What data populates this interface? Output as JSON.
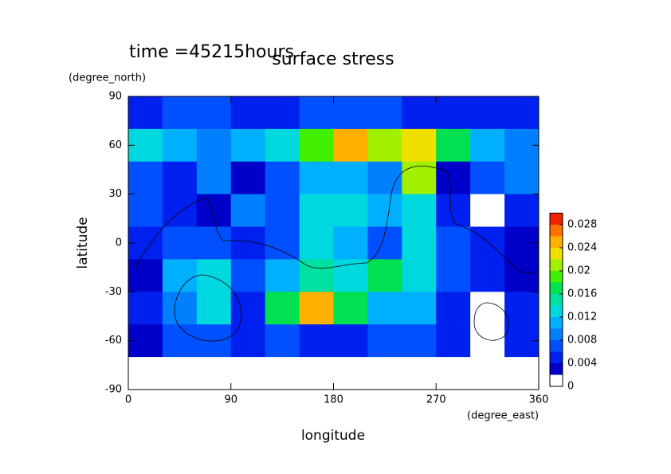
{
  "chart_data": {
    "type": "contour",
    "time_label": "time =45215hours",
    "title": "surface stress",
    "ylabel_unit": "(degree_north)",
    "ylabel": "latitude",
    "xlabel": "longitude",
    "xlabel_unit": "(degree_east)",
    "x": [
      15,
      45,
      75,
      105,
      135,
      165,
      195,
      225,
      255,
      285,
      315,
      345
    ],
    "y": [
      80,
      60,
      40,
      20,
      0,
      -20,
      -40,
      -60,
      -80
    ],
    "z": [
      [
        0.005,
        0.006,
        0.006,
        0.005,
        0.005,
        0.006,
        0.006,
        0.006,
        0.005,
        0.005,
        0.005,
        0.004
      ],
      [
        0.012,
        0.01,
        0.008,
        0.01,
        0.012,
        0.018,
        0.024,
        0.02,
        0.022,
        0.016,
        0.01,
        0.008
      ],
      [
        0.006,
        0.004,
        0.008,
        0.002,
        0.006,
        0.01,
        0.01,
        0.008,
        0.02,
        0.002,
        0.006,
        0.008
      ],
      [
        0.006,
        0.004,
        0.002,
        0.008,
        0.006,
        0.012,
        0.012,
        0.01,
        0.012,
        0.004,
        0,
        0.004
      ],
      [
        0.004,
        0.006,
        0.006,
        0.004,
        0.006,
        0.012,
        0.01,
        0.006,
        0.012,
        0.006,
        0.004,
        0.002
      ],
      [
        0.002,
        0.01,
        0.012,
        0.006,
        0.01,
        0.014,
        0.012,
        0.016,
        0.012,
        0.006,
        0.004,
        0.002
      ],
      [
        0.004,
        0.008,
        0.012,
        0.004,
        0.016,
        0.024,
        0.016,
        0.01,
        0.01,
        0.004,
        0,
        0.004
      ],
      [
        0.002,
        0.006,
        0.006,
        0.004,
        0.006,
        0.004,
        0.004,
        0.006,
        0.006,
        0.004,
        0,
        0.004
      ],
      [
        0,
        0,
        0,
        0,
        0,
        0,
        0,
        0,
        0,
        0,
        0,
        0
      ]
    ],
    "xlim": [
      0,
      360
    ],
    "xticks": [
      0,
      90,
      180,
      270,
      360
    ],
    "ylim": [
      -90,
      90
    ],
    "yticks": [
      -90,
      -60,
      -30,
      0,
      30,
      60,
      90
    ],
    "levels": [
      0,
      0.002,
      0.004,
      0.006,
      0.008,
      0.01,
      0.012,
      0.014,
      0.016,
      0.018,
      0.02,
      0.022,
      0.024,
      0.026,
      0.028,
      0.03
    ],
    "colors": [
      "#ffffff",
      "#0000c8",
      "#0020f0",
      "#0050ff",
      "#0080ff",
      "#00b0ff",
      "#00d8e0",
      "#00e0a0",
      "#00e050",
      "#40f000",
      "#a0f000",
      "#f0e000",
      "#ffb000",
      "#ff7000",
      "#f02000"
    ],
    "colorbar_ticks": [
      0,
      0.004,
      0.008,
      0.012,
      0.016,
      0.02,
      0.024,
      0.028
    ]
  }
}
